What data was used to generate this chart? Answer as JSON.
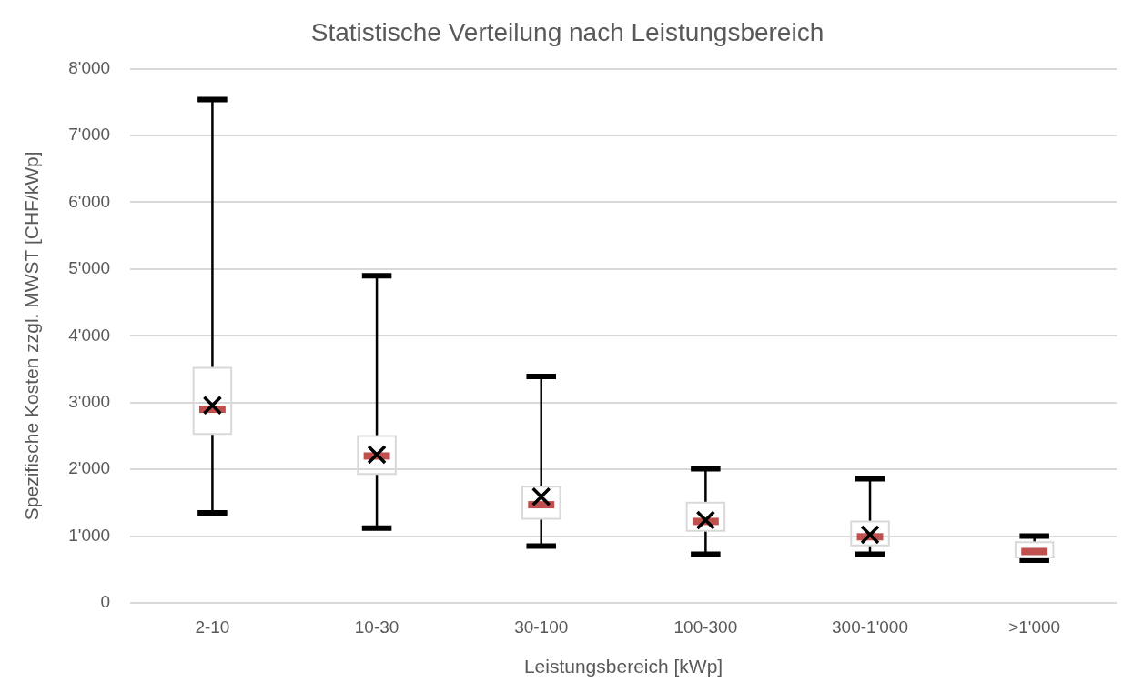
{
  "chart_data": {
    "type": "box",
    "title": "Statistische Verteilung nach Leistungsbereich",
    "xlabel": "Leistungsbereich [kWp]",
    "ylabel": "Spezifische Kosten zzgl. MWST [CHF/kWp]",
    "categories": [
      "2-10",
      "10-30",
      "30-100",
      "100-300",
      "300-1'000",
      ">1'000"
    ],
    "color": "#d9d9d9",
    "boxes": [
      {
        "low": 1350,
        "q1": 2530,
        "median": 2900,
        "q3": 3520,
        "high": 7540,
        "mean": 2960
      },
      {
        "low": 1120,
        "q1": 1930,
        "median": 2200,
        "q3": 2500,
        "high": 4900,
        "mean": 2220
      },
      {
        "low": 850,
        "q1": 1260,
        "median": 1470,
        "q3": 1740,
        "high": 3390,
        "mean": 1590
      },
      {
        "low": 730,
        "q1": 1080,
        "median": 1220,
        "q3": 1500,
        "high": 2010,
        "mean": 1240
      },
      {
        "low": 730,
        "q1": 860,
        "median": 990,
        "q3": 1220,
        "high": 1860,
        "mean": 1020
      },
      {
        "low": 640,
        "q1": 680,
        "median": 770,
        "q3": 910,
        "high": 1000
      }
    ],
    "ylim": [
      0,
      8000
    ],
    "yticks": [
      0,
      {
        "value": 1000,
        "label": "1'000"
      },
      {
        "value": 2000,
        "label": "2'000"
      },
      {
        "value": 3000,
        "label": "3'000"
      },
      {
        "value": 4000,
        "label": "4'000"
      },
      {
        "value": 5000,
        "label": "5'000"
      },
      {
        "value": 6000,
        "label": "6'000"
      },
      {
        "value": 7000,
        "label": "7'000"
      },
      {
        "value": 8000,
        "label": "8'000"
      }
    ],
    "grid": "y",
    "legend": false,
    "marker": "cross"
  }
}
